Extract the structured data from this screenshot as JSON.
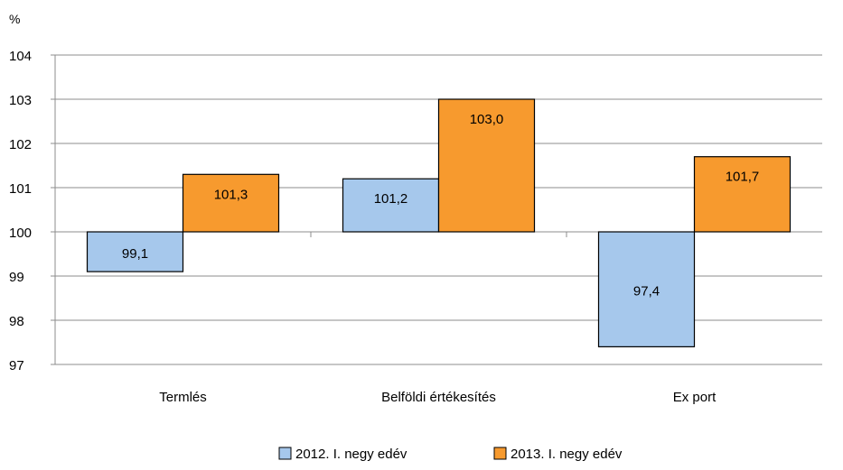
{
  "chart_data": {
    "type": "bar",
    "unit_label": "%",
    "categories": [
      "Termlés",
      "Belföldi értékesítés",
      "Ex port"
    ],
    "series": [
      {
        "name": "2012. I. negy edév",
        "values": [
          99.1,
          101.2,
          97.4
        ],
        "labels": [
          "99,1",
          "101,2",
          "97,4"
        ],
        "color": "#A6C8EC"
      },
      {
        "name": "2013. I. negy edév",
        "values": [
          101.3,
          103.0,
          101.7
        ],
        "labels": [
          "101,3",
          "103,0",
          "101,7"
        ],
        "color": "#F79A2E"
      }
    ],
    "baseline": 100,
    "ylim": [
      97,
      104
    ],
    "yticks": [
      "97",
      "98",
      "99",
      "100",
      "101",
      "102",
      "103",
      "104"
    ],
    "grid": true,
    "legend_position": "bottom"
  }
}
